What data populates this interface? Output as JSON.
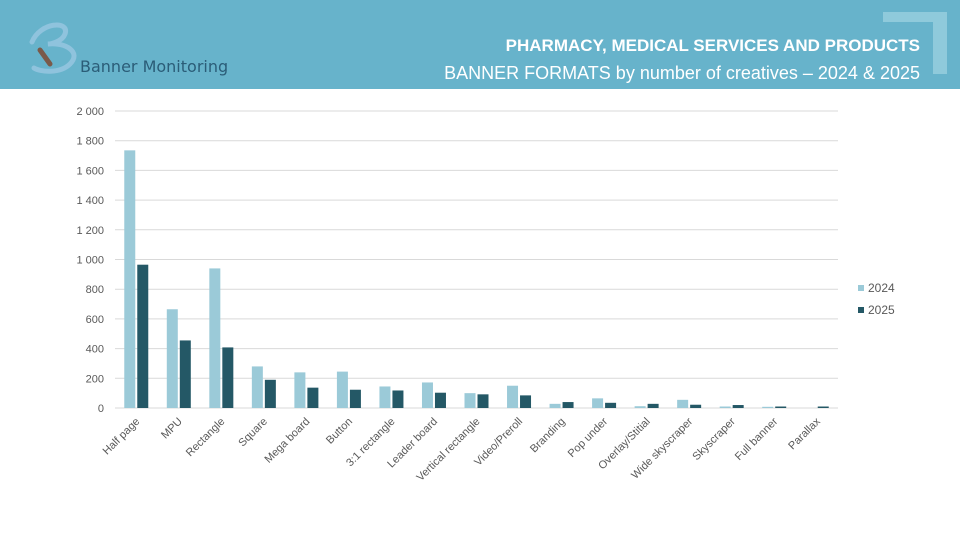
{
  "header": {
    "brand": "Banner Monitoring",
    "title": "PHARMACY, MEDICAL SERVICES AND PRODUCTS",
    "subtitle": "BANNER FORMATS by number of creatives – 2024 & 2025"
  },
  "chart_data": {
    "type": "bar",
    "title": "BANNER FORMATS by number of creatives – 2024 & 2025",
    "xlabel": "",
    "ylabel": "",
    "ylim": [
      0,
      2000
    ],
    "yticks": [
      0,
      200,
      400,
      600,
      800,
      1000,
      1200,
      1400,
      1600,
      1800,
      2000
    ],
    "ytick_labels": [
      "0",
      "200",
      "400",
      "600",
      "800",
      "1 000",
      "1 200",
      "1 400",
      "1 600",
      "1 800",
      "2 000"
    ],
    "grid": true,
    "legend_position": "right",
    "categories": [
      "Half page",
      "MPU",
      "Rectangle",
      "Square",
      "Mega board",
      "Button",
      "3:1 rectangle",
      "Leader board",
      "Vertical rectangle",
      "Video/Preroll",
      "Branding",
      "Pop under",
      "Overlay/Stitial",
      "Wide skyscraper",
      "Skyscraper",
      "Full banner",
      "Parallax"
    ],
    "series": [
      {
        "name": "2024",
        "color": "#9bcad8",
        "values": [
          1735,
          665,
          940,
          280,
          240,
          245,
          145,
          172,
          100,
          150,
          28,
          65,
          12,
          55,
          10,
          8,
          0
        ]
      },
      {
        "name": "2025",
        "color": "#245866",
        "values": [
          965,
          455,
          408,
          190,
          137,
          123,
          118,
          103,
          92,
          85,
          40,
          35,
          28,
          22,
          20,
          10,
          10
        ]
      }
    ]
  }
}
